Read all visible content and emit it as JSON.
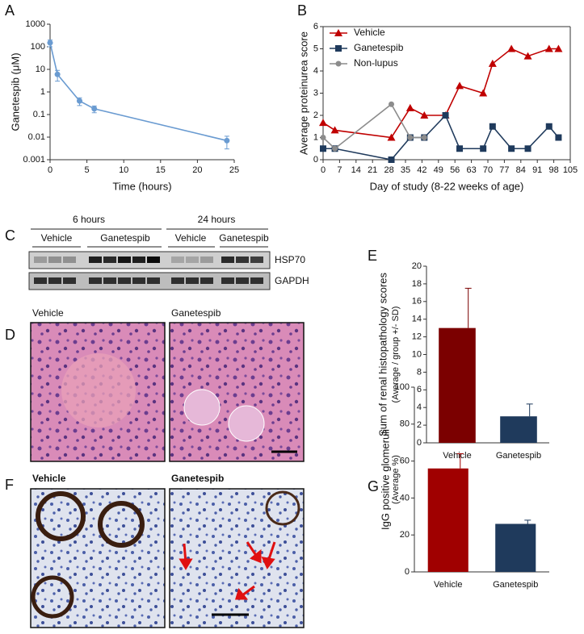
{
  "panel_labels": [
    "A",
    "B",
    "C",
    "D",
    "E",
    "F",
    "G"
  ],
  "chart_data": [
    {
      "type": "line",
      "xlabel": "Time (hours)",
      "ylabel": "Ganetespib (μM)",
      "log_y": true,
      "x": [
        0,
        1,
        4,
        6,
        24
      ],
      "series": [
        {
          "color": "#6a9bd1",
          "marker": "circle",
          "values": [
            150,
            6,
            0.4,
            0.18,
            0.007
          ],
          "errors": [
            50,
            3,
            0.15,
            0.06,
            0.004
          ]
        }
      ],
      "xlim": [
        0,
        25
      ],
      "xticks": [
        0,
        5,
        10,
        15,
        20,
        25
      ],
      "ylim": [
        0.001,
        1000
      ],
      "yticks": [
        0.001,
        0.01,
        0.1,
        1,
        10,
        100,
        1000
      ]
    },
    {
      "type": "line",
      "xlabel": "Day of study (8-22 weeks of age)",
      "ylabel": "Average proteinurea score",
      "legend": "top-left",
      "x": [
        0,
        5,
        29,
        37,
        43,
        52,
        58,
        68,
        72,
        80,
        87,
        96,
        100
      ],
      "series": [
        {
          "name": "Vehicle",
          "color": "#c00000",
          "marker": "triangle",
          "values": [
            1.67,
            1.33,
            1.0,
            2.33,
            2.0,
            2.0,
            3.33,
            3.0,
            4.33,
            5.0,
            4.67,
            5.0,
            5.0
          ]
        },
        {
          "name": "Ganetespib",
          "color": "#1f3a5c",
          "marker": "square",
          "values": [
            0.5,
            0.5,
            0,
            1.0,
            1.0,
            2.0,
            0.5,
            0.5,
            1.5,
            0.5,
            0.5,
            1.5,
            1.0
          ]
        },
        {
          "name": "Non-lupus",
          "color": "#8c8c8c",
          "marker": "circle",
          "values": [
            1.0,
            0.5,
            2.5,
            1.0,
            1.0,
            null,
            null,
            null,
            null,
            null,
            null,
            null,
            null
          ]
        }
      ],
      "xlim": [
        0,
        105
      ],
      "xticks": [
        0,
        7,
        14,
        21,
        28,
        35,
        42,
        49,
        56,
        63,
        70,
        77,
        84,
        91,
        98,
        105
      ],
      "ylim": [
        0,
        6
      ],
      "yticks": [
        0,
        1,
        2,
        3,
        4,
        5,
        6
      ]
    },
    {
      "type": "bar",
      "ylabel": "Sum of renal histopathology scores",
      "ylabel_note": "(Average / group +/- SD)",
      "categories": [
        "Vehicle",
        "Ganetespib"
      ],
      "values": [
        13,
        3
      ],
      "errors": [
        4.5,
        1.4
      ],
      "colors": [
        "#7b0000",
        "#1f3a5c"
      ],
      "ylim": [
        0,
        20
      ],
      "yticks": [
        0,
        2,
        4,
        6,
        8,
        10,
        12,
        14,
        16,
        18,
        20
      ]
    },
    {
      "type": "bar",
      "ylabel": "IgG positive glomeruli",
      "ylabel_note": "(Average %)",
      "categories": [
        "Vehicle",
        "Ganetespib"
      ],
      "values": [
        56,
        26
      ],
      "errors": [
        8,
        2
      ],
      "colors": [
        "#a00000",
        "#1f3a5c"
      ],
      "ylim": [
        0,
        100
      ],
      "yticks": [
        0,
        20,
        40,
        60,
        80,
        100
      ]
    }
  ],
  "blot": {
    "groups": [
      "6 hours",
      "24 hours"
    ],
    "treatments": [
      "Vehicle",
      "Ganetespib",
      "Vehicle",
      "Ganetespib"
    ],
    "bands": [
      "HSP70",
      "GAPDH"
    ]
  },
  "micrographs": {
    "D": [
      "Vehicle",
      "Ganetespib"
    ],
    "F": [
      "Vehicle",
      "Ganetespib"
    ]
  }
}
